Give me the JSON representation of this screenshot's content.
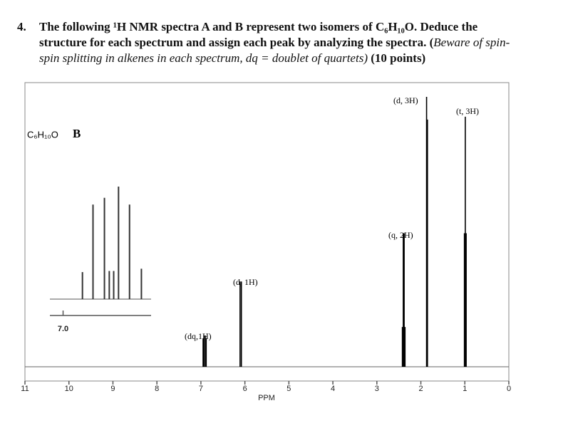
{
  "question": {
    "number": "4.",
    "line1": "The following ¹H NMR spectra A and B represent two isomers of C₆H₁₀O.  Deduce the",
    "line2": "structure for each spectrum and assign each peak by analyzing the spectra. (",
    "line2_italic": "Beware of spin-",
    "line3_italic": "spin splitting in alkenes in each spectrum, dq = doublet of quartets)",
    "points": "(10 points)"
  },
  "chart_data": [
    {
      "type": "spectrum",
      "xlabel": "PPM",
      "sample_label": "C₆H₁₀O",
      "spectrum_label": "B",
      "xlim": [
        11,
        0
      ],
      "xticks": [
        11,
        10,
        9,
        8,
        7,
        6,
        5,
        4,
        3,
        2,
        1,
        0
      ],
      "ylim": [
        0,
        100
      ],
      "x": [
        6.95,
        6.93,
        6.9,
        6.88,
        6.11,
        6.08,
        2.42,
        2.4,
        2.38,
        2.36,
        1.87,
        1.85,
        1.01,
        0.99,
        0.97
      ],
      "values": [
        10,
        11,
        11,
        10,
        30,
        30,
        14,
        47,
        47,
        14,
        95,
        87,
        47,
        88,
        47
      ],
      "color": "#000000",
      "annotations": [
        "(d, 3H)",
        "(t, 3H)",
        "(q, 2H)",
        "(d, 1H)",
        "(dq,1H)"
      ]
    },
    {
      "type": "spectrum",
      "xlim": [
        7.03,
        6.8
      ],
      "xticks": [
        {
          "value": 7.0,
          "label": "7.0"
        }
      ],
      "ylim": [
        0,
        100
      ],
      "x": [
        6.956,
        6.932,
        6.906,
        6.895,
        6.885,
        6.874,
        6.849,
        6.822
      ],
      "values": [
        24,
        84,
        90,
        25,
        25,
        100,
        84,
        27
      ],
      "color": "#333333"
    }
  ]
}
